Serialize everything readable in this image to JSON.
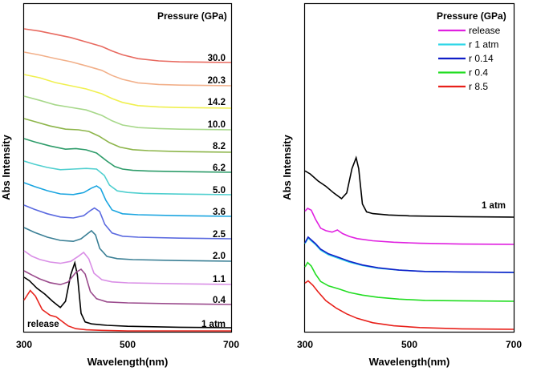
{
  "chart_data": [
    {
      "type": "line",
      "xlabel": "Wavelength(nm)",
      "ylabel": "Abs Intensity",
      "xlim": [
        300,
        700
      ],
      "xticks": [
        "300",
        "500",
        "700"
      ],
      "legend_title": "Pressure (GPa)",
      "series": [
        {
          "name": "release",
          "color": "#e8261f",
          "x": [
            300,
            312,
            322,
            335,
            350,
            362,
            372,
            385,
            400,
            420,
            450,
            500,
            600,
            700
          ],
          "y": [
            0.55,
            0.72,
            0.62,
            0.38,
            0.28,
            0.25,
            0.18,
            0.09,
            0.04,
            0.02,
            0.01,
            0.0,
            0.0,
            0.0
          ]
        },
        {
          "name": "1 atm",
          "color": "#000000",
          "x": [
            300,
            310,
            325,
            340,
            355,
            370,
            380,
            390,
            398,
            403,
            410,
            418,
            430,
            460,
            500,
            600,
            700
          ],
          "y": [
            1.05,
            0.98,
            0.82,
            0.7,
            0.55,
            0.42,
            0.55,
            1.1,
            1.35,
            1.1,
            0.3,
            0.12,
            0.08,
            0.05,
            0.03,
            0.01,
            0.0
          ]
        },
        {
          "name": "0.4",
          "color": "#9a4a8c",
          "x": [
            300,
            315,
            330,
            350,
            370,
            385,
            400,
            410,
            418,
            428,
            440,
            460,
            500,
            600,
            700
          ],
          "y": [
            1.05,
            0.92,
            0.8,
            0.68,
            0.62,
            0.7,
            1.0,
            1.1,
            0.95,
            0.4,
            0.18,
            0.08,
            0.05,
            0.02,
            0.0
          ]
        },
        {
          "name": "1.1",
          "color": "#d98ee6",
          "x": [
            300,
            315,
            330,
            350,
            370,
            390,
            405,
            415,
            425,
            435,
            450,
            470,
            500,
            600,
            700
          ],
          "y": [
            1.05,
            0.88,
            0.78,
            0.7,
            0.66,
            0.72,
            0.88,
            1.0,
            0.8,
            0.35,
            0.15,
            0.08,
            0.05,
            0.02,
            0.0
          ]
        },
        {
          "name": "2.0",
          "color": "#3a7f95",
          "x": [
            300,
            320,
            345,
            370,
            395,
            410,
            422,
            430,
            438,
            446,
            460,
            480,
            510,
            600,
            700
          ],
          "y": [
            1.05,
            0.9,
            0.75,
            0.65,
            0.62,
            0.7,
            0.85,
            0.95,
            0.82,
            0.4,
            0.15,
            0.08,
            0.05,
            0.02,
            0.0
          ]
        },
        {
          "name": "2.5",
          "color": "#5b6ae0",
          "x": [
            300,
            320,
            345,
            370,
            395,
            415,
            428,
            436,
            446,
            456,
            470,
            490,
            520,
            600,
            700
          ],
          "y": [
            1.05,
            0.92,
            0.78,
            0.68,
            0.65,
            0.72,
            0.88,
            0.96,
            0.85,
            0.45,
            0.18,
            0.08,
            0.05,
            0.02,
            0.0
          ]
        },
        {
          "name": "3.6",
          "color": "#1aa5e0",
          "x": [
            300,
            320,
            345,
            370,
            395,
            415,
            430,
            440,
            448,
            458,
            470,
            490,
            520,
            600,
            700
          ],
          "y": [
            1.05,
            0.93,
            0.8,
            0.7,
            0.68,
            0.74,
            0.88,
            0.95,
            0.86,
            0.5,
            0.2,
            0.08,
            0.05,
            0.02,
            0.0
          ]
        },
        {
          "name": "5.0",
          "color": "#4fcfcf",
          "x": [
            300,
            320,
            345,
            370,
            395,
            420,
            440,
            455,
            465,
            480,
            500,
            530,
            600,
            700
          ],
          "y": [
            1.05,
            0.95,
            0.85,
            0.78,
            0.8,
            0.82,
            0.8,
            0.6,
            0.3,
            0.12,
            0.07,
            0.04,
            0.02,
            0.0
          ]
        },
        {
          "name": "6.2",
          "color": "#2e9c6a",
          "x": [
            300,
            320,
            350,
            380,
            400,
            420,
            440,
            460,
            475,
            490,
            510,
            540,
            600,
            700
          ],
          "y": [
            1.05,
            0.95,
            0.82,
            0.72,
            0.74,
            0.7,
            0.6,
            0.35,
            0.18,
            0.1,
            0.06,
            0.04,
            0.02,
            0.0
          ]
        },
        {
          "name": "8.2",
          "color": "#8db54a",
          "x": [
            300,
            320,
            350,
            380,
            405,
            425,
            445,
            465,
            485,
            510,
            540,
            600,
            700
          ],
          "y": [
            1.05,
            0.96,
            0.82,
            0.72,
            0.7,
            0.65,
            0.5,
            0.3,
            0.16,
            0.08,
            0.05,
            0.02,
            0.0
          ]
        },
        {
          "name": "10.0",
          "color": "#a7d88a",
          "x": [
            300,
            330,
            360,
            390,
            420,
            450,
            470,
            490,
            520,
            560,
            600,
            700
          ],
          "y": [
            1.05,
            0.92,
            0.78,
            0.7,
            0.62,
            0.45,
            0.28,
            0.15,
            0.07,
            0.04,
            0.02,
            0.0
          ]
        },
        {
          "name": "14.2",
          "color": "#f0f050",
          "x": [
            300,
            330,
            360,
            390,
            420,
            450,
            470,
            490,
            520,
            560,
            600,
            700
          ],
          "y": [
            1.05,
            0.95,
            0.8,
            0.7,
            0.6,
            0.45,
            0.3,
            0.18,
            0.08,
            0.04,
            0.02,
            0.0
          ]
        },
        {
          "name": "20.3",
          "color": "#f2b08a",
          "x": [
            300,
            330,
            360,
            390,
            420,
            450,
            470,
            490,
            520,
            560,
            600,
            700
          ],
          "y": [
            1.05,
            0.96,
            0.85,
            0.75,
            0.62,
            0.48,
            0.32,
            0.2,
            0.09,
            0.04,
            0.02,
            0.0
          ]
        },
        {
          "name": "30.0",
          "color": "#e86a60",
          "x": [
            300,
            330,
            360,
            390,
            420,
            450,
            470,
            490,
            520,
            560,
            600,
            700
          ],
          "y": [
            1.05,
            0.98,
            0.88,
            0.78,
            0.64,
            0.5,
            0.36,
            0.24,
            0.12,
            0.05,
            0.02,
            0.0
          ]
        }
      ]
    },
    {
      "type": "line",
      "xlabel": "Wavelength(nm)",
      "ylabel": "Abs Intensity",
      "xlim": [
        300,
        700
      ],
      "xticks": [
        "300",
        "500",
        "700"
      ],
      "legend_title": "Pressure (GPa)",
      "series": [
        {
          "name": "1 atm",
          "color": "#000000",
          "x": [
            300,
            310,
            325,
            340,
            355,
            370,
            380,
            390,
            398,
            403,
            410,
            418,
            430,
            460,
            500,
            600,
            700
          ],
          "y": [
            1.05,
            0.98,
            0.82,
            0.7,
            0.55,
            0.42,
            0.55,
            1.1,
            1.35,
            1.1,
            0.3,
            0.12,
            0.08,
            0.05,
            0.03,
            0.01,
            0.0
          ]
        },
        {
          "name": "release",
          "color": "#e020e0",
          "x": [
            300,
            305,
            312,
            320,
            330,
            340,
            352,
            362,
            372,
            385,
            400,
            430,
            470,
            520,
            600,
            700
          ],
          "y": [
            0.92,
            1.0,
            0.95,
            0.7,
            0.45,
            0.38,
            0.34,
            0.4,
            0.3,
            0.22,
            0.16,
            0.1,
            0.06,
            0.03,
            0.01,
            0.0
          ]
        },
        {
          "name": "r 1 atm",
          "color": "#2fd6e8",
          "x": [
            300,
            306,
            312,
            320,
            330,
            345,
            365,
            385,
            410,
            440,
            480,
            530,
            600,
            700
          ],
          "y": [
            0.62,
            0.74,
            0.68,
            0.6,
            0.48,
            0.38,
            0.3,
            0.22,
            0.15,
            0.09,
            0.05,
            0.02,
            0.01,
            0.0
          ]
        },
        {
          "name": "r 0.14",
          "color": "#101ec8",
          "x": [
            300,
            306,
            312,
            320,
            330,
            345,
            365,
            385,
            410,
            440,
            480,
            530,
            600,
            700
          ],
          "y": [
            0.64,
            0.76,
            0.7,
            0.62,
            0.5,
            0.4,
            0.32,
            0.24,
            0.16,
            0.1,
            0.05,
            0.02,
            0.01,
            0.0
          ]
        },
        {
          "name": "r 0.4",
          "color": "#22dd22",
          "x": [
            300,
            305,
            312,
            320,
            330,
            345,
            365,
            385,
            410,
            440,
            480,
            530,
            600,
            700
          ],
          "y": [
            0.78,
            0.88,
            0.8,
            0.62,
            0.45,
            0.35,
            0.28,
            0.2,
            0.14,
            0.09,
            0.05,
            0.02,
            0.01,
            0.0
          ]
        },
        {
          "name": "r 8.5",
          "color": "#e8201a",
          "x": [
            300,
            306,
            315,
            325,
            340,
            360,
            380,
            400,
            430,
            470,
            520,
            600,
            700
          ],
          "y": [
            1.05,
            1.1,
            1.0,
            0.85,
            0.65,
            0.48,
            0.35,
            0.25,
            0.15,
            0.08,
            0.04,
            0.01,
            0.0
          ]
        }
      ],
      "legend": [
        "release",
        "r 1 atm",
        "r 0.14",
        "r 0.4",
        "r 8.5"
      ]
    }
  ]
}
